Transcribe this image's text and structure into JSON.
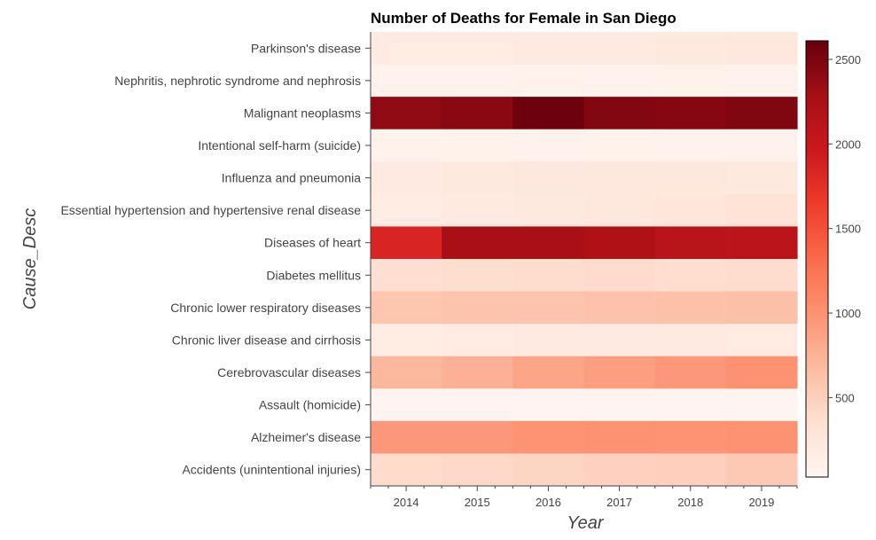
{
  "chart_data": {
    "type": "heatmap",
    "title": "Number of Deaths for Female in San Diego",
    "xlabel": "Year",
    "ylabel": "Cause_Desc",
    "x": [
      "2014",
      "2015",
      "2016",
      "2017",
      "2018",
      "2019"
    ],
    "y": [
      "Parkinson's disease",
      "Nephritis, nephrotic syndrome and nephrosis",
      "Malignant neoplasms",
      "Intentional self-harm (suicide)",
      "Influenza and pneumonia",
      "Essential hypertension and hypertensive renal disease",
      "Diseases of heart",
      "Diabetes mellitus",
      "Chronic lower respiratory diseases",
      "Chronic liver disease and cirrhosis",
      "Cerebrovascular diseases",
      "Assault (homicide)",
      "Alzheimer's disease",
      "Accidents (unintentional injuries)"
    ],
    "values": [
      [
        180,
        190,
        200,
        205,
        215,
        230
      ],
      [
        70,
        75,
        80,
        78,
        82,
        85
      ],
      [
        2400,
        2430,
        2580,
        2470,
        2450,
        2480
      ],
      [
        80,
        82,
        78,
        80,
        76,
        74
      ],
      [
        200,
        220,
        230,
        250,
        240,
        215
      ],
      [
        170,
        200,
        215,
        235,
        265,
        310
      ],
      [
        1850,
        2250,
        2250,
        2200,
        2120,
        2100
      ],
      [
        360,
        370,
        380,
        400,
        370,
        380
      ],
      [
        580,
        600,
        600,
        610,
        620,
        630
      ],
      [
        160,
        180,
        200,
        195,
        200,
        190
      ],
      [
        700,
        750,
        850,
        900,
        950,
        1000
      ],
      [
        40,
        40,
        45,
        42,
        38,
        40
      ],
      [
        950,
        950,
        990,
        1000,
        990,
        1000
      ],
      [
        400,
        420,
        450,
        480,
        500,
        550
      ]
    ],
    "colorbar": {
      "ticks": [
        500,
        1000,
        1500,
        2000,
        2500
      ],
      "range": [
        30,
        2610
      ]
    },
    "colorscale": [
      "#fff5f0",
      "#fee0d2",
      "#fcbba1",
      "#fc9272",
      "#fb6a4a",
      "#ef3b2c",
      "#cb181d",
      "#a50f15",
      "#67000d"
    ],
    "grid": false,
    "legend": "colorbar-right"
  }
}
